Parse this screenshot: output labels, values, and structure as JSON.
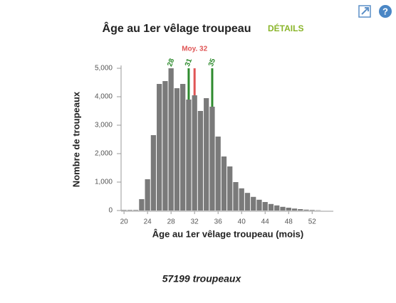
{
  "chart_data": {
    "type": "histogram",
    "title": "Âge au 1er vêlage troupeau",
    "link": "DÉTAILS",
    "x_label": "Âge au 1er vêlage troupeau (mois)",
    "y_label": "Nombre de troupeaux",
    "footer": "57199 troupeaux",
    "color": "#7a7a7a",
    "bins": [
      19.5,
      20.5,
      21.5,
      22.5,
      23.5,
      24.5,
      25.5,
      26.5,
      27.5,
      28.5,
      29.5,
      30.5,
      31.5,
      32.5,
      33.5,
      34.5,
      35.5,
      36.5,
      37.5,
      38.5,
      39.5,
      40.5,
      41.5,
      42.5,
      43.5,
      44.5,
      45.5,
      46.5,
      47.5,
      48.5,
      49.5,
      50.5,
      51.5,
      52.5,
      53.5
    ],
    "values": [
      20,
      20,
      20,
      400,
      1100,
      2650,
      4450,
      4550,
      5000,
      4300,
      4450,
      3900,
      4050,
      3500,
      3950,
      3650,
      2600,
      1900,
      1550,
      1000,
      780,
      620,
      480,
      380,
      300,
      230,
      180,
      130,
      100,
      70,
      50,
      30,
      20,
      10
    ],
    "xlim": [
      19.5,
      55.6
    ],
    "ylim": [
      0,
      5000
    ],
    "xticks": [
      20,
      24,
      28,
      32,
      36,
      40,
      44,
      48,
      52
    ],
    "yticks": [
      {
        "value": 0,
        "label": "0"
      },
      {
        "value": 1000,
        "label": "1,000"
      },
      {
        "value": 2000,
        "label": "2,000"
      },
      {
        "value": 3000,
        "label": "3,000"
      },
      {
        "value": 4000,
        "label": "4,000"
      },
      {
        "value": 5000,
        "label": "5,000"
      }
    ],
    "markers": [
      {
        "value": 28,
        "color": "#2e8b2e"
      },
      {
        "value": 31,
        "color": "#2e8b2e"
      },
      {
        "value": 35,
        "color": "#2e8b2e"
      }
    ],
    "mean": {
      "value": 32,
      "label": "Moy. 32",
      "color": "#e05555"
    }
  }
}
